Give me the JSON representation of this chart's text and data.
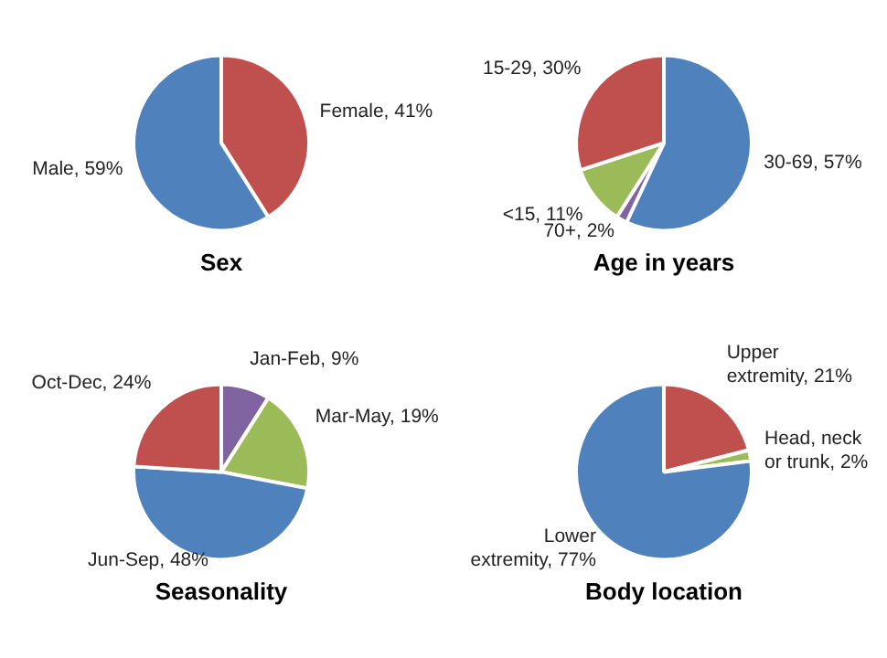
{
  "chart_data": [
    {
      "type": "pie",
      "title": "Sex",
      "categories": [
        "Female",
        "Male"
      ],
      "values": [
        41,
        59
      ],
      "value_labels": [
        "41%",
        "59%"
      ],
      "colors": [
        "#c0504d",
        "#4f81bd"
      ]
    },
    {
      "type": "pie",
      "title": "Age in years",
      "categories": [
        "30-69",
        "70+",
        "<15",
        "15-29"
      ],
      "values": [
        57,
        2,
        11,
        30
      ],
      "value_labels": [
        "57%",
        "2%",
        "11%",
        "30%"
      ],
      "colors": [
        "#4f81bd",
        "#8064a2",
        "#9bbb59",
        "#c0504d"
      ]
    },
    {
      "type": "pie",
      "title": "Seasonality",
      "categories": [
        "Jan-Feb",
        "Mar-May",
        "Jun-Sep",
        "Oct-Dec"
      ],
      "values": [
        9,
        19,
        48,
        24
      ],
      "value_labels": [
        "9%",
        "19%",
        "48%",
        "24%"
      ],
      "colors": [
        "#8064a2",
        "#9bbb59",
        "#4f81bd",
        "#c0504d"
      ]
    },
    {
      "type": "pie",
      "title": "Body location",
      "categories": [
        "Upper extremity",
        "Head, neck or trunk",
        "Lower extremity"
      ],
      "values": [
        21,
        2,
        77
      ],
      "value_labels": [
        "21%",
        "2%",
        "77%"
      ],
      "colors": [
        "#c0504d",
        "#9bbb59",
        "#4f81bd"
      ]
    }
  ]
}
